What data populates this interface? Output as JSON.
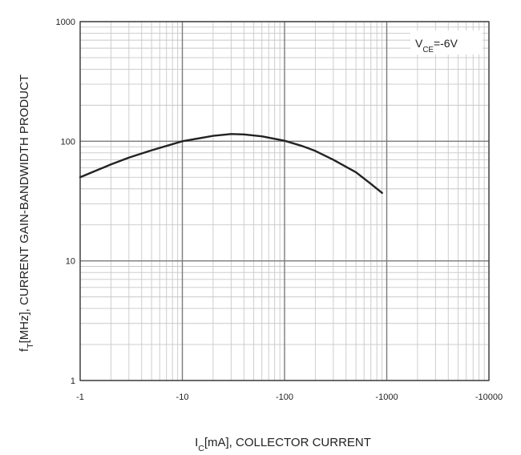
{
  "chart_data": {
    "type": "line",
    "title": "",
    "xlabel": {
      "main": "I",
      "sub": "C",
      "rest": "[mA], COLLECTOR CURRENT"
    },
    "ylabel": {
      "main": "f",
      "sub": "T",
      "rest": "[MHz], CURRENT GAIN-BANDWIDTH PRODUCT"
    },
    "annotation": {
      "main": "V",
      "sub": "CE",
      "rest": "=-6V"
    },
    "x_scale": "log",
    "y_scale": "log",
    "grid": true,
    "x_ticks": [
      {
        "value": 1,
        "label": "-1"
      },
      {
        "value": 10,
        "label": "-10"
      },
      {
        "value": 100,
        "label": "-100"
      },
      {
        "value": 1000,
        "label": "-1000"
      },
      {
        "value": 10000,
        "label": "-10000"
      }
    ],
    "y_ticks": [
      {
        "value": 1,
        "label": "1"
      },
      {
        "value": 10,
        "label": "10"
      },
      {
        "value": 100,
        "label": "100"
      },
      {
        "value": 1000,
        "label": "1000"
      }
    ],
    "xlim": [
      1,
      10000
    ],
    "ylim": [
      1,
      1000
    ],
    "series": [
      {
        "color": "#222222",
        "x": [
          1,
          2,
          3,
          5,
          10,
          20,
          30,
          40,
          60,
          100,
          150,
          200,
          300,
          500,
          700,
          900
        ],
        "y": [
          50,
          64,
          73,
          84,
          100,
          111,
          115,
          114,
          110,
          101,
          91,
          83,
          70,
          55,
          44,
          37
        ]
      }
    ]
  }
}
